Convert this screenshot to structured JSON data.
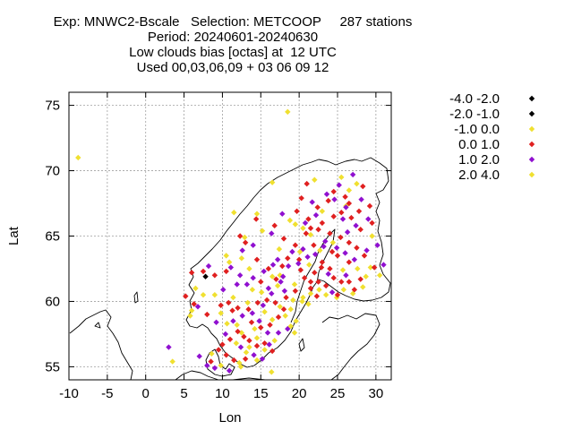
{
  "chart_data": {
    "type": "scatter",
    "title_lines": [
      "Exp: MNWC2-Bscale   Selection: METCOOP     287 stations",
      "Period: 20240601-20240630",
      "Low clouds bias [octas] at  12 UTC",
      "Used 00,03,06,09 + 03 06 09 12"
    ],
    "xlabel": "Lon",
    "ylabel": "Lat",
    "xlim": [
      -10,
      32
    ],
    "ylim": [
      54,
      76
    ],
    "xticks": [
      -10,
      -5,
      0,
      5,
      10,
      15,
      20,
      25,
      30
    ],
    "yticks": [
      55,
      60,
      65,
      70,
      75
    ],
    "grid": true,
    "legend_position": "right",
    "series": [
      {
        "name": "-4.0 -2.0",
        "color": "#000000",
        "points": []
      },
      {
        "name": "-2.0 -1.0",
        "color": "#000000",
        "points": [
          [
            7.8,
            61.9
          ]
        ]
      },
      {
        "name": "-1.0 0.0",
        "color": "#f0e030",
        "points": [
          [
            -8.8,
            71.0
          ],
          [
            18.5,
            74.5
          ],
          [
            25.5,
            69.5
          ],
          [
            26.5,
            68.5
          ],
          [
            27.5,
            69.0
          ],
          [
            22.0,
            69.3
          ],
          [
            16.5,
            69.1
          ],
          [
            11.5,
            66.8
          ],
          [
            14.5,
            66.7
          ],
          [
            18.8,
            66.2
          ],
          [
            19.5,
            65.9
          ],
          [
            20.5,
            65.6
          ],
          [
            21.5,
            65.1
          ],
          [
            23.0,
            66.9
          ],
          [
            17.5,
            62.0
          ],
          [
            17.2,
            61.2
          ],
          [
            16.5,
            61.9
          ],
          [
            13.5,
            62.5
          ],
          [
            10.5,
            63.5
          ],
          [
            12.5,
            63.3
          ],
          [
            9.0,
            60.5
          ],
          [
            7.5,
            60.5
          ],
          [
            6.0,
            59.3
          ],
          [
            6.5,
            61.0
          ],
          [
            5.8,
            58.9
          ],
          [
            9.8,
            59.1
          ],
          [
            10.6,
            58.3
          ],
          [
            11.9,
            58.2
          ],
          [
            12.5,
            57.6
          ],
          [
            13.5,
            56.5
          ],
          [
            14.5,
            57.2
          ],
          [
            15.5,
            56.3
          ],
          [
            16.5,
            58.6
          ],
          [
            17.5,
            59.6
          ],
          [
            18.9,
            59.4
          ],
          [
            19.2,
            60.1
          ],
          [
            20.5,
            60.3
          ],
          [
            21.5,
            60.6
          ],
          [
            22.6,
            60.9
          ],
          [
            23.5,
            60.5
          ],
          [
            24.9,
            60.3
          ],
          [
            25.8,
            60.9
          ],
          [
            27.0,
            60.6
          ],
          [
            28.3,
            61.1
          ],
          [
            29.3,
            62.6
          ],
          [
            30.5,
            62.0
          ],
          [
            27.6,
            62.5
          ],
          [
            25.7,
            62.4
          ],
          [
            3.5,
            55.4
          ],
          [
            9.8,
            55.1
          ],
          [
            12.4,
            55.0
          ],
          [
            11.8,
            56.8
          ],
          [
            14.5,
            55.5
          ],
          [
            16.4,
            54.6
          ],
          [
            8.6,
            56.0
          ],
          [
            13.3,
            59.9
          ],
          [
            15.1,
            60.7
          ],
          [
            20.1,
            63.8
          ],
          [
            15.5,
            59.2
          ],
          [
            18.2,
            58.9
          ],
          [
            14.2,
            57.9
          ],
          [
            16.8,
            57.0
          ],
          [
            24.4,
            64.5
          ],
          [
            22.7,
            63.9
          ],
          [
            29.5,
            65.0
          ],
          [
            17.4,
            64.0
          ],
          [
            15.2,
            65.4
          ],
          [
            12.9,
            64.9
          ],
          [
            10.9,
            63.0
          ],
          [
            11.4,
            60.3
          ],
          [
            13.9,
            60.9
          ],
          [
            21.3,
            62.8
          ],
          [
            26.1,
            67.3
          ],
          [
            28.7,
            61.9
          ],
          [
            12.2,
            55.3
          ],
          [
            13.1,
            56.1
          ]
        ]
      },
      {
        "name": "0.0 1.0",
        "color": "#e02020",
        "points": [
          [
            24.5,
            68.4
          ],
          [
            26.0,
            68.0
          ],
          [
            26.5,
            67.5
          ],
          [
            23.8,
            67.7
          ],
          [
            21.0,
            69.0
          ],
          [
            25.5,
            66.8
          ],
          [
            24.5,
            66.5
          ],
          [
            23.0,
            66.0
          ],
          [
            22.5,
            65.5
          ],
          [
            21.5,
            65.6
          ],
          [
            20.9,
            65.2
          ],
          [
            24.0,
            65.2
          ],
          [
            25.4,
            64.9
          ],
          [
            26.5,
            64.5
          ],
          [
            27.5,
            64.1
          ],
          [
            28.0,
            65.5
          ],
          [
            29.5,
            66.0
          ],
          [
            28.5,
            63.5
          ],
          [
            26.5,
            63.0
          ],
          [
            25.0,
            63.5
          ],
          [
            24.0,
            62.5
          ],
          [
            23.0,
            63.0
          ],
          [
            22.0,
            62.2
          ],
          [
            21.5,
            61.5
          ],
          [
            22.5,
            61.5
          ],
          [
            23.5,
            61.2
          ],
          [
            24.5,
            61.8
          ],
          [
            25.5,
            61.5
          ],
          [
            26.5,
            61.5
          ],
          [
            28.0,
            61.7
          ],
          [
            29.8,
            62.6
          ],
          [
            27.2,
            60.9
          ],
          [
            25.0,
            60.5
          ],
          [
            22.3,
            60.4
          ],
          [
            21.5,
            61.0
          ],
          [
            20.0,
            63.2
          ],
          [
            19.5,
            64.3
          ],
          [
            18.5,
            63.3
          ],
          [
            17.8,
            62.7
          ],
          [
            17.0,
            61.7
          ],
          [
            16.0,
            62.5
          ],
          [
            15.0,
            61.5
          ],
          [
            14.5,
            63.2
          ],
          [
            13.0,
            64.5
          ],
          [
            12.3,
            65.0
          ],
          [
            14.4,
            66.3
          ],
          [
            16.8,
            65.8
          ],
          [
            18.0,
            64.8
          ],
          [
            19.7,
            66.9
          ],
          [
            20.3,
            67.9
          ],
          [
            22.4,
            67.2
          ],
          [
            21.2,
            66.3
          ],
          [
            10.5,
            62.3
          ],
          [
            9.0,
            62.0
          ],
          [
            7.5,
            62.3
          ],
          [
            6.0,
            62.2
          ],
          [
            5.2,
            60.4
          ],
          [
            6.3,
            59.8
          ],
          [
            8.0,
            59.0
          ],
          [
            9.8,
            59.7
          ],
          [
            10.8,
            59.9
          ],
          [
            11.3,
            59.3
          ],
          [
            12.0,
            59.5
          ],
          [
            13.4,
            59.4
          ],
          [
            14.6,
            59.9
          ],
          [
            15.8,
            60.1
          ],
          [
            16.9,
            59.9
          ],
          [
            18.0,
            59.4
          ],
          [
            17.3,
            58.8
          ],
          [
            16.2,
            58.2
          ],
          [
            15.0,
            58.0
          ],
          [
            13.8,
            58.4
          ],
          [
            12.8,
            57.3
          ],
          [
            12.0,
            57.7
          ],
          [
            13.5,
            57.0
          ],
          [
            14.5,
            56.6
          ],
          [
            15.5,
            56.8
          ],
          [
            16.5,
            56.2
          ],
          [
            13.0,
            55.6
          ],
          [
            11.5,
            55.5
          ],
          [
            10.5,
            55.9
          ],
          [
            9.5,
            56.3
          ],
          [
            8.5,
            55.4
          ],
          [
            10.0,
            56.7
          ],
          [
            11.0,
            57.1
          ],
          [
            18.3,
            60.3
          ],
          [
            19.5,
            60.8
          ],
          [
            20.7,
            61.8
          ],
          [
            26.8,
            66.4
          ],
          [
            27.8,
            66.9
          ],
          [
            29.2,
            67.3
          ],
          [
            28.3,
            68.8
          ],
          [
            22.9,
            62.6
          ],
          [
            24.3,
            63.8
          ],
          [
            21.9,
            64.3
          ],
          [
            20.2,
            62.4
          ]
        ]
      },
      {
        "name": "1.0 2.0",
        "color": "#9010d0",
        "points": [
          [
            27.0,
            69.7
          ],
          [
            25.2,
            68.9
          ],
          [
            23.6,
            68.2
          ],
          [
            24.6,
            67.8
          ],
          [
            26.1,
            67.2
          ],
          [
            28.1,
            67.8
          ],
          [
            27.4,
            65.8
          ],
          [
            26.3,
            65.3
          ],
          [
            23.4,
            64.6
          ],
          [
            20.5,
            64.0
          ],
          [
            19.1,
            63.8
          ],
          [
            17.2,
            63.2
          ],
          [
            16.6,
            62.8
          ],
          [
            15.4,
            62.3
          ],
          [
            14.0,
            61.8
          ],
          [
            12.3,
            62.0
          ],
          [
            11.1,
            62.6
          ],
          [
            8.2,
            62.7
          ],
          [
            6.8,
            59.6
          ],
          [
            9.2,
            58.4
          ],
          [
            10.4,
            57.5
          ],
          [
            12.6,
            58.9
          ],
          [
            13.9,
            59.1
          ],
          [
            15.3,
            59.7
          ],
          [
            16.4,
            60.6
          ],
          [
            17.6,
            61.5
          ],
          [
            18.6,
            62.7
          ],
          [
            19.9,
            62.9
          ],
          [
            21.1,
            63.4
          ],
          [
            22.1,
            63.6
          ],
          [
            23.2,
            64.2
          ],
          [
            24.9,
            64.1
          ],
          [
            26.0,
            63.7
          ],
          [
            27.2,
            63.2
          ],
          [
            28.8,
            63.9
          ],
          [
            30.2,
            64.3
          ],
          [
            31.0,
            62.8
          ],
          [
            22.2,
            66.6
          ],
          [
            20.8,
            66.0
          ],
          [
            16.4,
            65.2
          ],
          [
            17.8,
            66.7
          ],
          [
            12.6,
            63.9
          ],
          [
            14.0,
            64.3
          ],
          [
            3.0,
            56.5
          ],
          [
            7.0,
            55.8
          ],
          [
            8.0,
            55.1
          ],
          [
            9.0,
            54.9
          ],
          [
            10.9,
            54.7
          ],
          [
            14.1,
            55.9
          ],
          [
            15.2,
            55.6
          ],
          [
            16.1,
            56.7
          ],
          [
            17.3,
            57.6
          ],
          [
            18.5,
            57.9
          ],
          [
            12.4,
            56.5
          ],
          [
            11.4,
            58.5
          ],
          [
            10.1,
            60.9
          ],
          [
            11.9,
            61.3
          ],
          [
            13.2,
            61.3
          ],
          [
            16.0,
            61.0
          ],
          [
            18.1,
            60.8
          ],
          [
            24.3,
            60.7
          ],
          [
            26.1,
            62.0
          ],
          [
            23.8,
            62.1
          ],
          [
            25.7,
            66.3
          ],
          [
            21.7,
            67.6
          ],
          [
            29.0,
            66.3
          ],
          [
            17.9,
            61.9
          ],
          [
            14.8,
            58.5
          ],
          [
            15.9,
            57.6
          ]
        ]
      },
      {
        "name": "2.0 4.0",
        "color": "#f0e030",
        "points": [
          [
            19.4,
            61.3
          ],
          [
            20.4,
            60.0
          ],
          [
            21.2,
            59.8
          ],
          [
            19.6,
            58.5
          ],
          [
            18.9,
            58.1
          ],
          [
            19.4,
            57.6
          ]
        ]
      }
    ]
  }
}
